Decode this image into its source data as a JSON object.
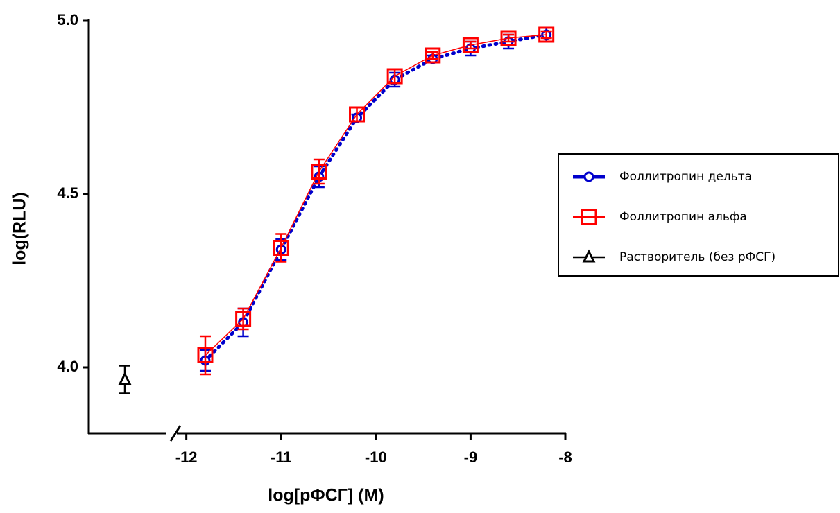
{
  "chart_data": {
    "type": "scatter",
    "xlabel": "log[рФСГ] (M)",
    "ylabel": "log(RLU)",
    "xlim": [
      -12.1,
      -8
    ],
    "xticks": [
      -12,
      -11,
      -10,
      -9,
      -8
    ],
    "ylim": [
      3.81,
      5.0
    ],
    "yticks": [
      {
        "value": 4.0,
        "label": "4.0"
      },
      {
        "value": 4.5,
        "label": "4.5"
      },
      {
        "value": 5.0,
        "label": "5.0"
      }
    ],
    "series": [
      {
        "name": "Фоллитропин дельта",
        "color": "#0000cc",
        "marker": "circle",
        "x": [
          -11.8,
          -11.4,
          -11.0,
          -10.6,
          -10.2,
          -9.8,
          -9.4,
          -9.0,
          -8.6,
          -8.2
        ],
        "values": [
          4.02,
          4.13,
          4.34,
          4.55,
          4.72,
          4.83,
          4.89,
          4.92,
          4.94,
          4.96
        ],
        "errors": [
          0.03,
          0.04,
          0.03,
          0.03,
          0.01,
          0.02,
          0.01,
          0.02,
          0.02,
          0.02
        ]
      },
      {
        "name": "Фоллитропин альфа",
        "color": "#ff0000",
        "marker": "square",
        "x": [
          -11.8,
          -11.4,
          -11.0,
          -10.6,
          -10.2,
          -9.8,
          -9.4,
          -9.0,
          -8.6,
          -8.2
        ],
        "values": [
          4.035,
          4.14,
          4.345,
          4.565,
          4.73,
          4.84,
          4.9,
          4.93,
          4.95,
          4.96
        ],
        "errors": [
          0.055,
          0.03,
          0.04,
          0.035,
          0.02,
          0.02,
          0.01,
          0.01,
          0.01,
          0.01
        ]
      },
      {
        "name": "Растворитель (без рФСГ)",
        "color": "#000000",
        "marker": "triangle",
        "values": [
          3.965
        ],
        "errors": [
          0.04
        ]
      }
    ]
  }
}
